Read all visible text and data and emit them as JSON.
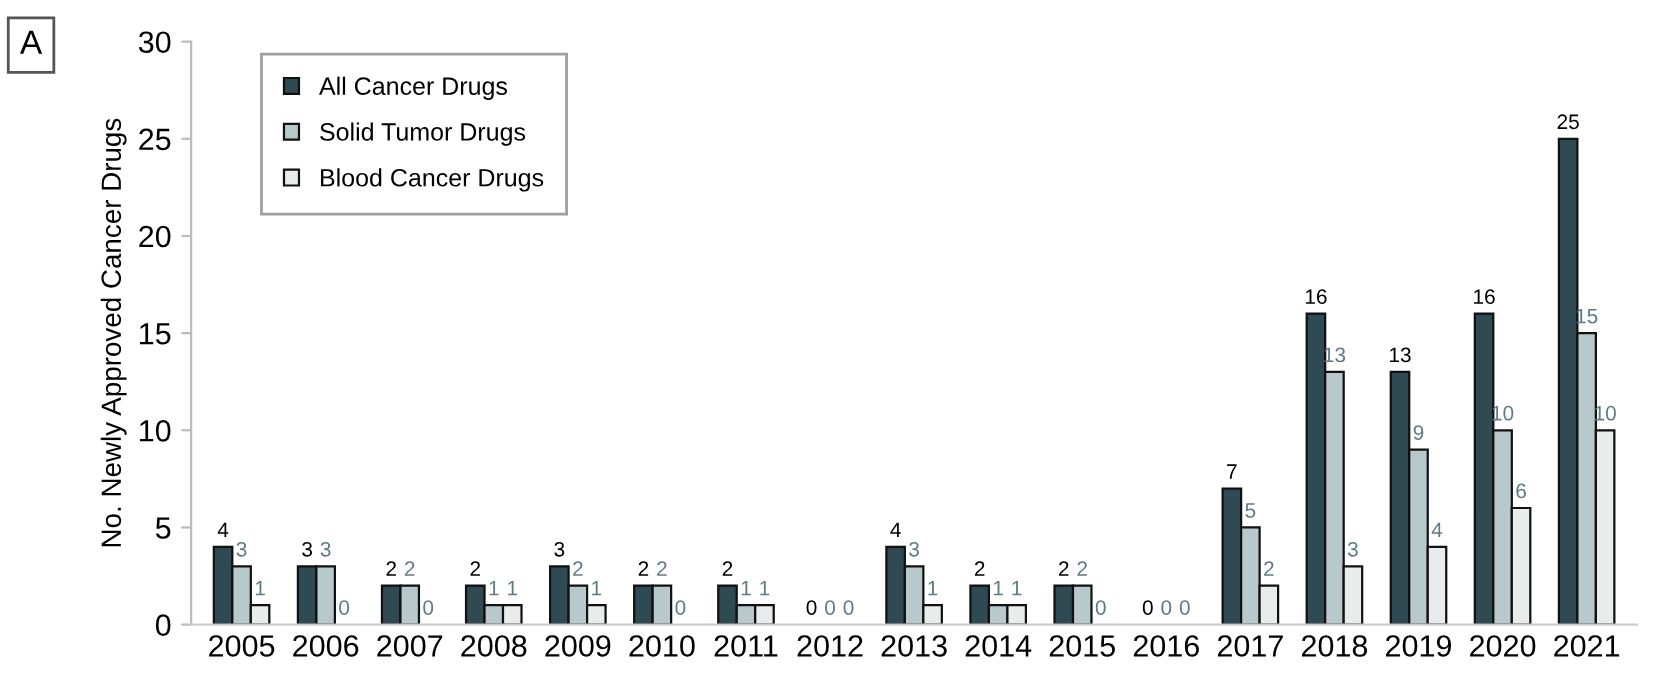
{
  "chart_data": {
    "type": "bar",
    "ylabel": "No. Newly Approved Cancer Drugs",
    "annotations": [
      "A"
    ],
    "categories": [
      "2005",
      "2006",
      "2007",
      "2008",
      "2009",
      "2010",
      "2011",
      "2012",
      "2013",
      "2014",
      "2015",
      "2016",
      "2017",
      "2018",
      "2019",
      "2020",
      "2021"
    ],
    "series": [
      {
        "name": "All Cancer Drugs",
        "color": "#2f4a52",
        "values": [
          4,
          3,
          2,
          2,
          3,
          2,
          2,
          0,
          4,
          2,
          2,
          0,
          7,
          16,
          13,
          16,
          25
        ]
      },
      {
        "name": "Solid Tumor Drugs",
        "color": "#b8c9cc",
        "values": [
          3,
          3,
          2,
          1,
          2,
          2,
          1,
          0,
          3,
          1,
          2,
          0,
          5,
          13,
          9,
          10,
          15
        ]
      },
      {
        "name": "Blood Cancer Drugs",
        "color": "#e8ecea",
        "values": [
          1,
          0,
          0,
          1,
          1,
          0,
          1,
          0,
          1,
          1,
          0,
          0,
          2,
          3,
          4,
          6,
          10
        ]
      }
    ],
    "ylim": [
      0,
      30
    ],
    "yticks": [
      0,
      5,
      10,
      15,
      20,
      25,
      30
    ],
    "data_labels": true,
    "legend": "top left",
    "grid": false
  }
}
